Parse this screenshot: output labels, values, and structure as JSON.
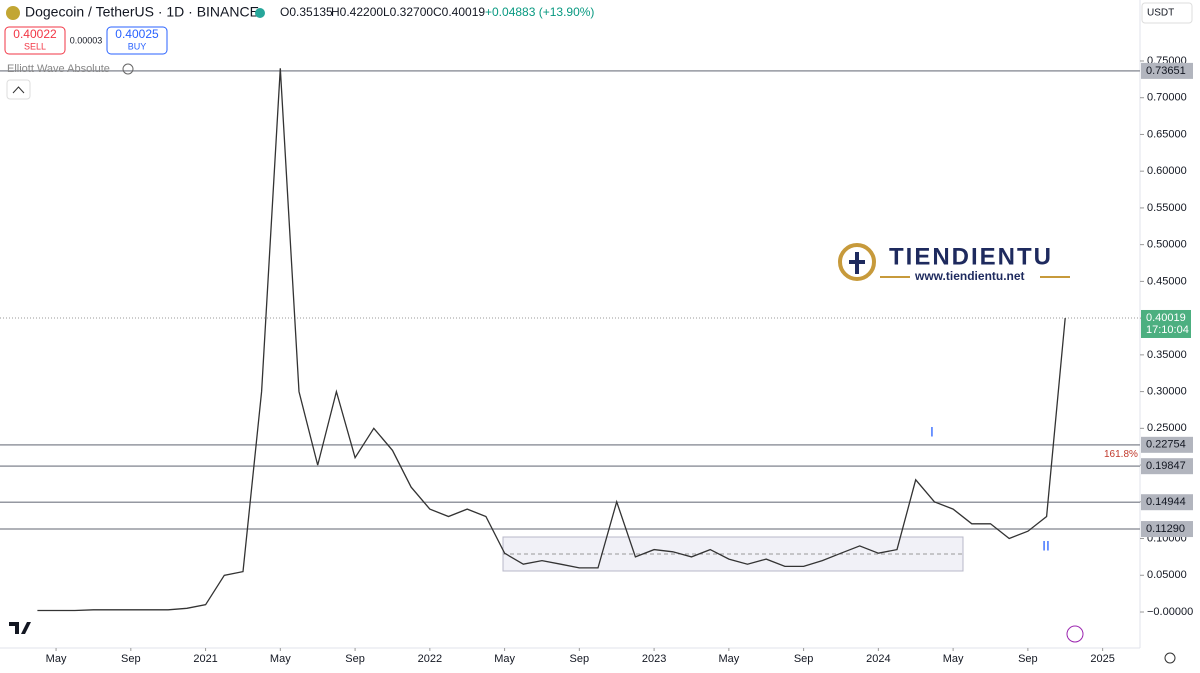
{
  "header": {
    "symbol": "Dogecoin / TetherUS · 1D · BINANCE",
    "ohlc": [
      "O0.35135",
      "H0.42200",
      "L0.32700",
      "C0.40019",
      "+0.04883 (+13.90%)"
    ]
  },
  "trade": {
    "sell_price": "0.40022",
    "sell_label": "SELL",
    "spread": "0.00003",
    "buy_price": "0.40025",
    "buy_label": "BUY"
  },
  "indicator": "Elliott Wave Absolute",
  "currency": "USDT",
  "watermark": {
    "name": "TIENDIENTU",
    "url": "www.tiendientu.net"
  },
  "chart_data": {
    "type": "line",
    "color": "#333333",
    "x": [
      "2020-04",
      "2020-05",
      "2020-06",
      "2020-07",
      "2020-08",
      "2020-09",
      "2020-10",
      "2020-11",
      "2020-12",
      "2021-01",
      "2021-02",
      "2021-03",
      "2021-04",
      "2021-05",
      "2021-06",
      "2021-07",
      "2021-08",
      "2021-09",
      "2021-10",
      "2021-11",
      "2021-12",
      "2022-01",
      "2022-02",
      "2022-03",
      "2022-04",
      "2022-05",
      "2022-06",
      "2022-07",
      "2022-08",
      "2022-09",
      "2022-10",
      "2022-11",
      "2022-12",
      "2023-01",
      "2023-02",
      "2023-03",
      "2023-04",
      "2023-05",
      "2023-06",
      "2023-07",
      "2023-08",
      "2023-09",
      "2023-10",
      "2023-11",
      "2023-12",
      "2024-01",
      "2024-02",
      "2024-03",
      "2024-04",
      "2024-05",
      "2024-06",
      "2024-07",
      "2024-08",
      "2024-09",
      "2024-10",
      "2024-11"
    ],
    "values": [
      0.002,
      0.002,
      0.002,
      0.003,
      0.003,
      0.003,
      0.003,
      0.003,
      0.005,
      0.01,
      0.05,
      0.055,
      0.3,
      0.74,
      0.3,
      0.2,
      0.3,
      0.21,
      0.25,
      0.22,
      0.17,
      0.14,
      0.13,
      0.14,
      0.13,
      0.08,
      0.065,
      0.07,
      0.065,
      0.06,
      0.06,
      0.15,
      0.075,
      0.085,
      0.082,
      0.075,
      0.085,
      0.072,
      0.065,
      0.072,
      0.062,
      0.062,
      0.07,
      0.08,
      0.09,
      0.08,
      0.085,
      0.18,
      0.15,
      0.14,
      0.12,
      0.12,
      0.1,
      0.11,
      0.13,
      0.40019
    ],
    "xlim": [
      "2020-02",
      "2025-03"
    ],
    "xticks": [
      {
        "value": "2020-05",
        "label": "May"
      },
      {
        "value": "2020-09",
        "label": "Sep"
      },
      {
        "value": "2021-01",
        "label": "2021"
      },
      {
        "value": "2021-05",
        "label": "May"
      },
      {
        "value": "2021-09",
        "label": "Sep"
      },
      {
        "value": "2022-01",
        "label": "2022"
      },
      {
        "value": "2022-05",
        "label": "May"
      },
      {
        "value": "2022-09",
        "label": "Sep"
      },
      {
        "value": "2023-01",
        "label": "2023"
      },
      {
        "value": "2023-05",
        "label": "May"
      },
      {
        "value": "2023-09",
        "label": "Sep"
      },
      {
        "value": "2024-01",
        "label": "2024"
      },
      {
        "value": "2024-05",
        "label": "May"
      },
      {
        "value": "2024-09",
        "label": "Sep"
      },
      {
        "value": "2025-01",
        "label": "2025"
      }
    ],
    "ylim": [
      -0.049,
      0.833
    ],
    "yticks": [
      {
        "value": 0,
        "label": "−0.00000"
      },
      {
        "value": 0.05,
        "label": "0.05000"
      },
      {
        "value": 0.1,
        "label": "0.10000"
      },
      {
        "value": 0.15,
        "label": "0.15000"
      },
      {
        "value": 0.2,
        "label": "0.20000"
      },
      {
        "value": 0.25,
        "label": "0.25000"
      },
      {
        "value": 0.3,
        "label": "0.30000"
      },
      {
        "value": 0.35,
        "label": "0.35000"
      },
      {
        "value": 0.4,
        "label": "0.40000"
      },
      {
        "value": 0.45,
        "label": "0.45000"
      },
      {
        "value": 0.5,
        "label": "0.50000"
      },
      {
        "value": 0.55,
        "label": "0.55000"
      },
      {
        "value": 0.6,
        "label": "0.60000"
      },
      {
        "value": 0.65,
        "label": "0.65000"
      },
      {
        "value": 0.7,
        "label": "0.70000"
      },
      {
        "value": 0.75,
        "label": "0.75000"
      }
    ],
    "grid": false,
    "levels": [
      {
        "value": 0.73651,
        "label": "0.73651"
      },
      {
        "value": 0.22754,
        "label": "0.22754"
      },
      {
        "value": 0.19847,
        "label": "0.19847"
      },
      {
        "value": 0.14944,
        "label": "0.14944"
      },
      {
        "value": 0.1129,
        "label": "0.11290"
      }
    ],
    "last_price": {
      "value": 0.40019,
      "label": "0.40019",
      "time": "17:10:04"
    },
    "annotations": {
      "fib": "161.8%",
      "wave_1": "I",
      "wave_2": "II"
    }
  }
}
